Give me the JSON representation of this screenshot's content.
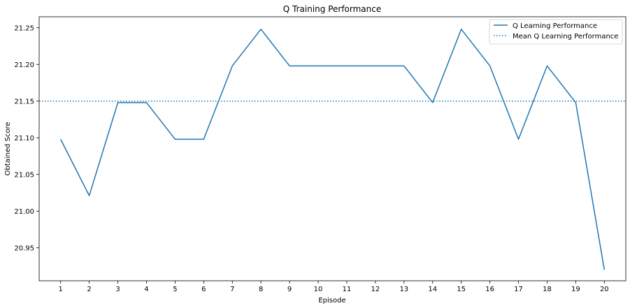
{
  "chart_data": {
    "type": "line",
    "title": "Q Training Performance",
    "xlabel": "Episode",
    "ylabel": "Obtained Score",
    "x": [
      1,
      2,
      3,
      4,
      5,
      6,
      7,
      8,
      9,
      10,
      11,
      12,
      13,
      14,
      15,
      16,
      17,
      18,
      19,
      20
    ],
    "xlim": [
      0.25,
      20.75
    ],
    "ylim": [
      20.905,
      21.265
    ],
    "yticks": [
      20.95,
      21.0,
      21.05,
      21.1,
      21.15,
      21.2,
      21.25
    ],
    "ytick_labels": [
      "20.95",
      "21.00",
      "21.05",
      "21.10",
      "21.15",
      "21.20",
      "21.25"
    ],
    "xtick_labels": [
      "1",
      "2",
      "3",
      "4",
      "5",
      "6",
      "7",
      "8",
      "9",
      "10",
      "11",
      "12",
      "13",
      "14",
      "15",
      "16",
      "17",
      "18",
      "19",
      "20"
    ],
    "grid": false,
    "legend_position": "top-right",
    "series": [
      {
        "name": "Q Learning Performance",
        "style": "solid",
        "color": "#1f77b4",
        "values": [
          21.098,
          21.021,
          21.148,
          21.148,
          21.098,
          21.098,
          21.198,
          21.248,
          21.198,
          21.198,
          21.198,
          21.198,
          21.198,
          21.148,
          21.248,
          21.198,
          21.098,
          21.198,
          21.148,
          20.92
        ]
      },
      {
        "name": "Mean Q Learning Performance",
        "style": "dotted",
        "color": "#1f77b4",
        "value": 21.15
      }
    ]
  }
}
